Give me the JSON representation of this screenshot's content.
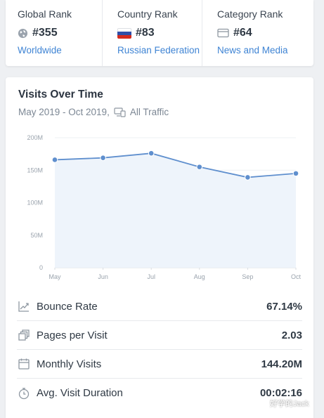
{
  "ranks": {
    "global": {
      "title": "Global Rank",
      "value": "#355",
      "link": "Worldwide",
      "icon": "globe-icon"
    },
    "country": {
      "title": "Country Rank",
      "value": "#83",
      "link": "Russian Federation",
      "icon": "russia-flag-icon"
    },
    "category": {
      "title": "Category Rank",
      "value": "#64",
      "link": "News and Media",
      "icon": "category-card-icon"
    }
  },
  "visits": {
    "title": "Visits Over Time",
    "date_range": "May 2019 - Oct 2019,",
    "traffic": "All Traffic"
  },
  "chart_data": {
    "type": "area",
    "categories": [
      "May",
      "Jun",
      "Jul",
      "Aug",
      "Sep",
      "Oct"
    ],
    "series": [
      {
        "values": [
          166,
          169,
          176,
          155,
          139,
          145
        ]
      }
    ],
    "yticks": [
      "0",
      "50M",
      "100M",
      "150M",
      "200M"
    ],
    "ylim": [
      0,
      200
    ],
    "grid": true,
    "line_color": "#5f8fce",
    "fill_color": "#eef4fb"
  },
  "metrics": [
    {
      "label": "Bounce Rate",
      "value": "67.14%",
      "icon": "bounce-rate-icon"
    },
    {
      "label": "Pages per Visit",
      "value": "2.03",
      "icon": "pages-icon"
    },
    {
      "label": "Monthly Visits",
      "value": "144.20M",
      "icon": "calendar-icon"
    },
    {
      "label": "Avg. Visit Duration",
      "value": "00:02:16",
      "icon": "stopwatch-icon"
    }
  ],
  "watermark": {
    "text": "好学的Jack"
  },
  "colors": {
    "link": "#3f84d4",
    "text": "#2b3440",
    "muted": "#7c8794"
  }
}
